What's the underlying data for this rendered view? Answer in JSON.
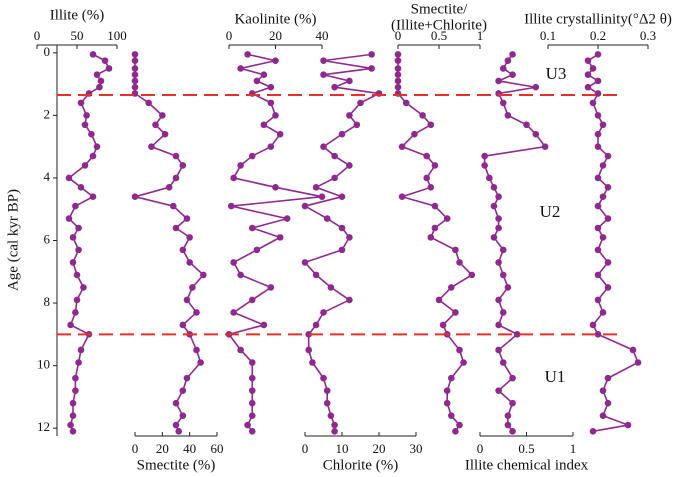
{
  "chart_data": {
    "type": "line",
    "ylabel": "Age (cal kyr BP)",
    "ylim": [
      -0.25,
      12.25
    ],
    "yticks": [
      0,
      2,
      4,
      6,
      8,
      10,
      12
    ],
    "y": [
      0.05,
      0.25,
      0.5,
      0.7,
      0.9,
      1.1,
      1.3,
      1.6,
      2.0,
      2.3,
      2.6,
      3.0,
      3.3,
      3.6,
      4.0,
      4.3,
      4.6,
      4.9,
      5.3,
      5.6,
      5.9,
      6.3,
      6.7,
      7.1,
      7.5,
      7.9,
      8.3,
      8.7,
      9.0,
      9.5,
      9.9,
      10.4,
      10.8,
      11.2,
      11.6,
      11.9,
      12.1
    ],
    "color": "#8e2a8e",
    "boundary_color": "#e8302a",
    "boundaries": [
      1.35,
      9.0
    ],
    "annotations": [
      "U3",
      "U2",
      "U1"
    ],
    "series": [
      {
        "name": "Illite (%)",
        "axis": "top",
        "xlim": [
          0,
          100
        ],
        "xticks": [
          0,
          50,
          100
        ],
        "values": [
          70,
          85,
          90,
          75,
          80,
          78,
          65,
          55,
          62,
          60,
          68,
          75,
          70,
          60,
          40,
          55,
          70,
          48,
          40,
          52,
          45,
          52,
          45,
          50,
          58,
          50,
          48,
          42,
          65,
          55,
          52,
          48,
          48,
          45,
          45,
          42,
          45
        ]
      },
      {
        "name": "Smectite (%)",
        "axis": "bottom",
        "xlim": [
          0,
          60
        ],
        "xticks": [
          0,
          20,
          40,
          60
        ],
        "values": [
          0,
          0,
          0,
          0,
          0,
          0,
          0,
          10,
          20,
          15,
          22,
          12,
          30,
          35,
          30,
          25,
          0,
          28,
          38,
          30,
          40,
          35,
          40,
          50,
          42,
          38,
          45,
          35,
          40,
          45,
          48,
          38,
          35,
          30,
          35,
          30,
          32
        ]
      },
      {
        "name": "Kaolinite (%)",
        "axis": "top",
        "xlim": [
          0,
          40
        ],
        "xticks": [
          0,
          20,
          40
        ],
        "values": [
          8,
          20,
          5,
          15,
          12,
          18,
          10,
          18,
          20,
          15,
          22,
          18,
          10,
          5,
          2,
          20,
          40,
          1,
          25,
          10,
          22,
          12,
          2,
          5,
          18,
          10,
          2,
          15,
          0,
          5,
          10,
          10,
          10,
          10,
          10,
          8,
          10
        ]
      },
      {
        "name": "Chlorite (%)",
        "axis": "bottom",
        "xlim": [
          0,
          30
        ],
        "xticks": [
          0,
          10,
          20,
          30
        ],
        "values": [
          18,
          5,
          18,
          5,
          12,
          8,
          20,
          15,
          12,
          14,
          10,
          5,
          8,
          12,
          8,
          3,
          10,
          0,
          6,
          10,
          12,
          10,
          0,
          3,
          7,
          12,
          5,
          3,
          1,
          1,
          2,
          5,
          6,
          6,
          7,
          8,
          8
        ]
      },
      {
        "name_lines": [
          "Smectite/",
          "(Illite+Chlorite)"
        ],
        "axis": "top",
        "xlim": [
          0,
          1
        ],
        "xticks": [
          0,
          0.5,
          1
        ],
        "values": [
          0,
          0,
          0,
          0,
          0,
          0,
          0,
          0.1,
          0.3,
          0.4,
          0.2,
          0.05,
          0.35,
          0.45,
          0.35,
          0.4,
          0.05,
          0.45,
          0.6,
          0.45,
          0.4,
          0.7,
          0.75,
          0.9,
          0.65,
          0.5,
          0.7,
          0.55,
          0.6,
          0.75,
          0.8,
          0.65,
          0.6,
          0.6,
          0.65,
          0.75,
          0.7
        ]
      },
      {
        "name": "Illite chemical index",
        "axis": "bottom",
        "xlim": [
          0,
          1
        ],
        "xticks": [
          0,
          0.5,
          1
        ],
        "values": [
          0.35,
          0.3,
          0.25,
          0.35,
          0.2,
          0.6,
          0.2,
          0.25,
          0.3,
          0.5,
          0.6,
          0.7,
          0.05,
          0.05,
          0.1,
          0.15,
          0.2,
          0.15,
          0.2,
          0.2,
          0.15,
          0.25,
          0.2,
          0.25,
          0.3,
          0.2,
          0.25,
          0.2,
          0.4,
          0.2,
          0.25,
          0.35,
          0.2,
          0.35,
          0.3,
          0.3,
          0.35
        ]
      },
      {
        "name": "Illite crystallinity(°Δ2 θ)",
        "axis": "top",
        "xlim": [
          0.1,
          0.3
        ],
        "xticks": [
          0.1,
          0.2,
          0.3
        ],
        "values": [
          0.2,
          0.18,
          0.19,
          0.18,
          0.2,
          0.18,
          0.2,
          0.19,
          0.2,
          0.21,
          0.2,
          0.2,
          0.22,
          0.21,
          0.2,
          0.22,
          0.21,
          0.2,
          0.22,
          0.2,
          0.21,
          0.2,
          0.22,
          0.2,
          0.22,
          0.2,
          0.21,
          0.19,
          0.2,
          0.27,
          0.28,
          0.22,
          0.21,
          0.22,
          0.21,
          0.26,
          0.19
        ]
      }
    ]
  }
}
